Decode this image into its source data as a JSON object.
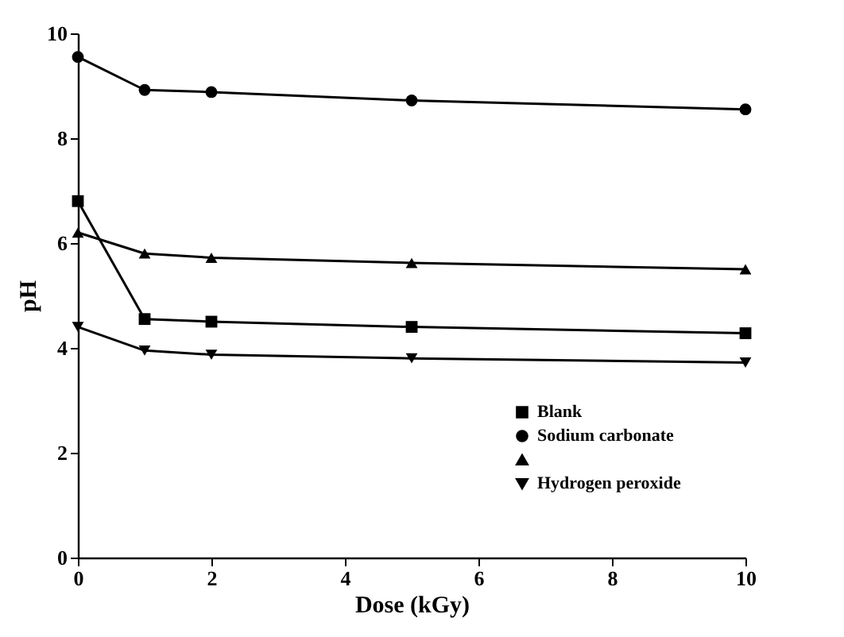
{
  "chart_data": {
    "type": "line",
    "xlabel": "Dose (kGy)",
    "ylabel": "pH",
    "x": [
      0,
      1,
      2,
      5,
      10
    ],
    "xlim": [
      0,
      10
    ],
    "xticks": [
      0,
      2,
      4,
      6,
      8,
      10
    ],
    "ylim": [
      0,
      10
    ],
    "yticks": [
      0,
      2,
      4,
      6,
      8,
      10
    ],
    "legend": "bottom right",
    "line_style": "solid",
    "series": [
      {
        "name": "Blank",
        "color": "#000000",
        "marker": "square",
        "values": [
          6.8,
          4.55,
          4.5,
          4.4,
          4.28
        ]
      },
      {
        "name": "Sodium carbonate",
        "color": "#000000",
        "marker": "circle",
        "values": [
          9.55,
          8.92,
          8.88,
          8.72,
          8.55
        ]
      },
      {
        "color": "#000000",
        "marker": "triangle",
        "values": [
          6.2,
          5.8,
          5.72,
          5.62,
          5.5
        ]
      },
      {
        "name": "Hydrogen peroxide",
        "color": "#000000",
        "marker": "triangle-down",
        "values": [
          4.4,
          3.95,
          3.87,
          3.8,
          3.72
        ]
      }
    ]
  }
}
